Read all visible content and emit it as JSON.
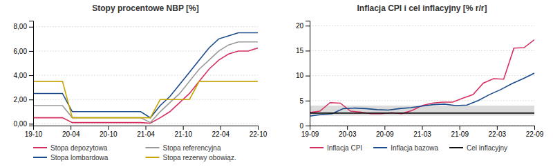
{
  "chart_data": [
    {
      "type": "line",
      "title": "Stopy procentowe NBP [%]",
      "x": [
        0,
        1,
        2,
        3,
        4,
        5,
        6,
        7,
        8,
        9,
        10,
        11,
        12,
        13,
        14,
        15,
        16,
        17,
        18,
        19,
        20,
        21,
        22,
        23
      ],
      "xlim": [
        0,
        23
      ],
      "xticks": [
        {
          "value": 0,
          "label": "19-10"
        },
        {
          "value": 3.8333333333333335,
          "label": "20-04"
        },
        {
          "value": 7.666666666666667,
          "label": "20-10"
        },
        {
          "value": 11.5,
          "label": "21-04"
        },
        {
          "value": 15.333333333333334,
          "label": "21-10"
        },
        {
          "value": 19.166666666666668,
          "label": "22-04"
        },
        {
          "value": 23,
          "label": "22-10"
        }
      ],
      "ylim": [
        -0.15,
        8.5
      ],
      "yticks": [
        {
          "value": 0.0,
          "label": "0,00"
        },
        {
          "value": 2.0,
          "label": "2,00"
        },
        {
          "value": 4.0,
          "label": "4,00"
        },
        {
          "value": 6.0,
          "label": "6,00"
        },
        {
          "value": 8.0,
          "label": "8,00"
        }
      ],
      "grid": "y",
      "legend": "bottom",
      "series": [
        {
          "name": "Stopa depozytowa",
          "color": "#d63060",
          "values": [
            0.5,
            0.5,
            0.5,
            0.5,
            0.1,
            0.1,
            0.1,
            0.1,
            0.1,
            0.1,
            0.1,
            0.1,
            0.05,
            0.5,
            1.0,
            1.75,
            2.5,
            3.5,
            4.5,
            5.25,
            5.75,
            6.0,
            6.0,
            6.25
          ]
        },
        {
          "name": "Stopa referencyjna",
          "color": "#999999",
          "values": [
            1.5,
            1.5,
            1.5,
            1.5,
            0.5,
            0.5,
            0.5,
            0.5,
            0.5,
            0.5,
            0.5,
            0.5,
            0.1,
            1.0,
            1.75,
            2.5,
            3.5,
            4.5,
            5.25,
            6.0,
            6.5,
            6.75,
            6.75,
            6.75
          ]
        },
        {
          "name": "Stopa lombardowa",
          "color": "#1a4b8c",
          "values": [
            2.5,
            2.5,
            2.5,
            2.5,
            1.0,
            1.0,
            1.0,
            1.0,
            1.0,
            1.0,
            1.0,
            1.0,
            0.5,
            1.5,
            2.25,
            3.25,
            4.25,
            5.25,
            6.25,
            7.0,
            7.25,
            7.5,
            7.5,
            7.5
          ]
        },
        {
          "name": "Stopa rezerwy obowiąz.",
          "color": "#c8a400",
          "values": [
            3.5,
            3.5,
            3.5,
            3.5,
            0.5,
            0.5,
            0.5,
            0.5,
            0.5,
            0.5,
            0.5,
            0.5,
            0.5,
            2.0,
            2.0,
            2.0,
            2.0,
            3.5,
            3.5,
            3.5,
            3.5,
            3.5,
            3.5,
            3.5
          ]
        }
      ]
    },
    {
      "type": "line",
      "title": "Inflacja CPI i cel inflacyjny [% r/r]",
      "xlim": [
        0,
        22
      ],
      "xticks": [
        {
          "value": 0,
          "label": "19-09"
        },
        {
          "value": 3.6666666666666665,
          "label": "20-03"
        },
        {
          "value": 7.333333333333333,
          "label": "20-09"
        },
        {
          "value": 11,
          "label": "21-03"
        },
        {
          "value": 14.666666666666666,
          "label": "21-09"
        },
        {
          "value": 18.333333333333332,
          "label": "22-03"
        },
        {
          "value": 22,
          "label": "22-09"
        }
      ],
      "ylim": [
        0,
        21
      ],
      "yticks": [
        0,
        5,
        10,
        15,
        20
      ],
      "band": [
        2.0,
        4.0
      ],
      "grid": "y",
      "legend": "bottom",
      "series": [
        {
          "name": "Inflacja CPI",
          "color": "#d63060",
          "x": [
            0,
            1,
            2,
            3,
            4,
            5,
            6,
            7,
            8,
            9,
            10,
            11,
            12,
            13,
            14,
            15,
            16,
            17,
            18,
            19,
            20,
            21,
            22
          ],
          "values": [
            2.6,
            2.9,
            4.6,
            4.5,
            2.9,
            2.7,
            2.4,
            2.4,
            2.6,
            2.4,
            3.0,
            4.0,
            4.5,
            4.7,
            4.7,
            5.5,
            6.2,
            8.5,
            9.4,
            9.3,
            15.5,
            15.6,
            17.2
          ]
        },
        {
          "name": "Inflacja bazowa",
          "color": "#1a4b8c",
          "x": [
            0,
            1.1,
            2.2,
            3.3,
            4.4,
            5.5,
            6.6,
            7.7,
            8.8,
            9.9,
            11,
            12.1,
            13.2,
            14.3,
            15.4,
            16.5,
            17.6,
            18.7,
            19.8,
            20.9,
            22
          ],
          "values": [
            1.9,
            2.2,
            2.4,
            3.4,
            3.5,
            3.4,
            3.2,
            3.1,
            3.4,
            3.6,
            3.9,
            4.2,
            4.3,
            4.0,
            4.1,
            5.0,
            6.2,
            7.2,
            8.4,
            9.4,
            10.5
          ]
        },
        {
          "name": "Cel inflacyjny",
          "color": "#111111",
          "x": [
            0,
            1,
            2,
            3,
            4,
            5,
            6,
            7,
            8,
            9,
            10,
            11,
            12,
            13,
            14,
            15,
            16,
            17,
            18,
            19,
            20,
            21,
            22
          ],
          "values": [
            2.5,
            2.5,
            2.5,
            2.5,
            2.5,
            2.5,
            2.5,
            2.5,
            2.5,
            2.5,
            2.5,
            2.5,
            2.5,
            2.5,
            2.5,
            2.5,
            2.5,
            2.5,
            2.5,
            2.5,
            2.5,
            2.5,
            2.5
          ]
        }
      ]
    }
  ]
}
